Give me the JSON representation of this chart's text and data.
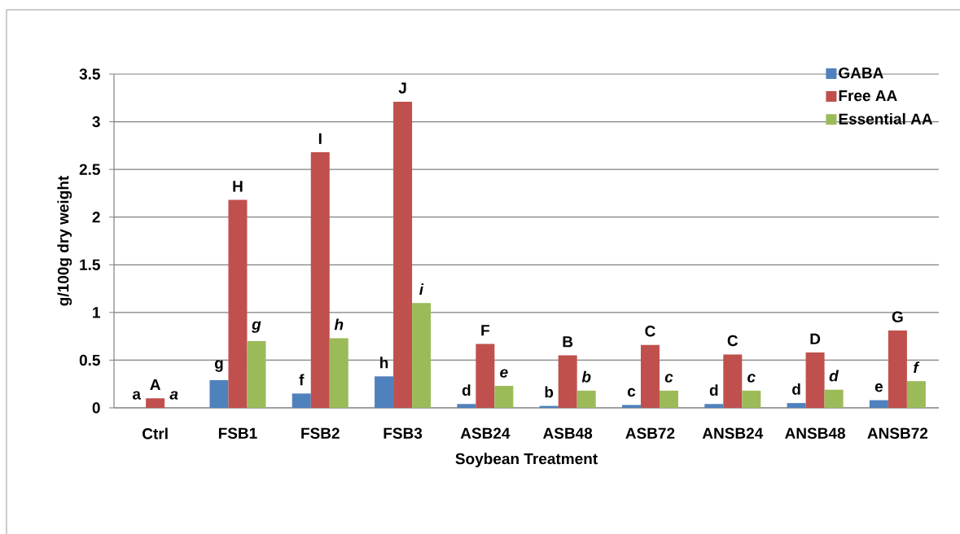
{
  "chart_data": {
    "type": "bar",
    "xlabel": "Soybean Treatment",
    "ylabel": "g/100g dry weight",
    "categories": [
      "Ctrl",
      "FSB1",
      "FSB2",
      "FSB3",
      "ASB24",
      "ASB48",
      "ASB72",
      "ANSB24",
      "ANSB48",
      "ANSB72"
    ],
    "series": [
      {
        "name": "GABA",
        "color": "#4f81bd",
        "values": [
          0,
          0.29,
          0.15,
          0.33,
          0.04,
          0.02,
          0.03,
          0.04,
          0.05,
          0.08
        ]
      },
      {
        "name": "Free AA",
        "color": "#c0504d",
        "values": [
          0.1,
          2.18,
          2.68,
          3.21,
          0.67,
          0.55,
          0.66,
          0.56,
          0.58,
          0.81
        ]
      },
      {
        "name": "Essential AA",
        "color": "#9bbb59",
        "values": [
          0,
          0.7,
          0.73,
          1.1,
          0.23,
          0.18,
          0.18,
          0.18,
          0.19,
          0.28
        ]
      }
    ],
    "ylim": [
      0,
      3.5
    ],
    "yticks": [
      0,
      0.5,
      1,
      1.5,
      2,
      2.5,
      3,
      3.5
    ],
    "grid": "y",
    "legend": "top right",
    "annotations": [
      "a",
      "A",
      "*a*",
      "g",
      "H",
      "*g*",
      "f",
      "I",
      "*h*",
      "h",
      "J",
      "*i*",
      "d",
      "F",
      "*e*",
      "b",
      "B",
      "*b*",
      "c",
      "C",
      "*c*",
      "d",
      "C",
      "*c*",
      "d",
      "D",
      "*d*",
      "e",
      "G",
      "*f*"
    ]
  }
}
